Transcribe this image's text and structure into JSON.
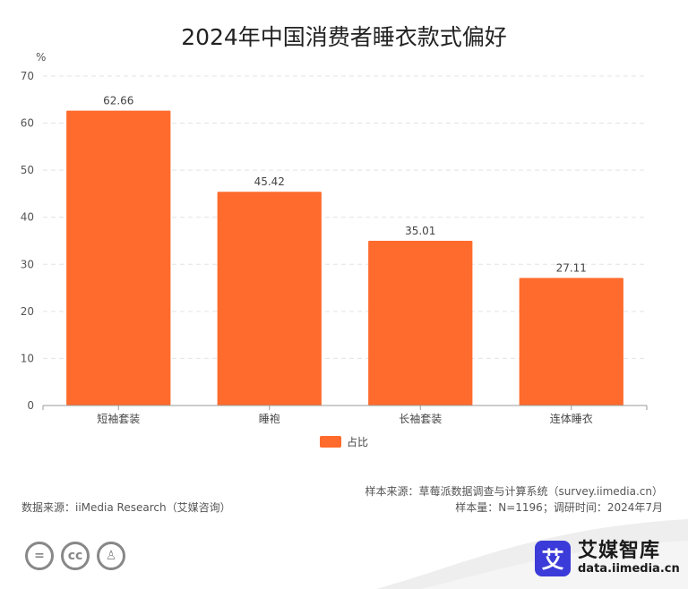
{
  "chart_data": {
    "type": "bar",
    "title": "2024年中国消费者睡衣款式偏好",
    "ylabel": "%",
    "ylim": [
      0,
      70
    ],
    "yticks": [
      0,
      10,
      20,
      30,
      40,
      50,
      60,
      70
    ],
    "grid": true,
    "legend_position": "bottom-center",
    "categories": [
      "短袖套装",
      "睡袍",
      "长袖套装",
      "连体睡衣"
    ],
    "series": [
      {
        "name": "占比",
        "values": [
          62.66,
          45.42,
          35.01,
          27.11
        ],
        "color": "#ff6b2c"
      }
    ],
    "value_labels": [
      "62.66",
      "45.42",
      "35.01",
      "27.11"
    ]
  },
  "footer": {
    "data_source": "数据来源：iiMedia Research（艾媒咨询）",
    "sample_source": "样本来源：草莓派数据调查与计算系统（survey.iimedia.cn）",
    "sample_info": "样本量：N=1196；调研时间：2024年7月"
  },
  "license_icons": [
    "equal-sign-icon",
    "cc-icon",
    "person-icon"
  ],
  "license_glyphs": [
    "=",
    "cc",
    "♙"
  ],
  "brand": {
    "badge": "艾",
    "name": "艾媒智库",
    "url": "data.iimedia.cn",
    "badge_color": "#3b3bd9"
  }
}
